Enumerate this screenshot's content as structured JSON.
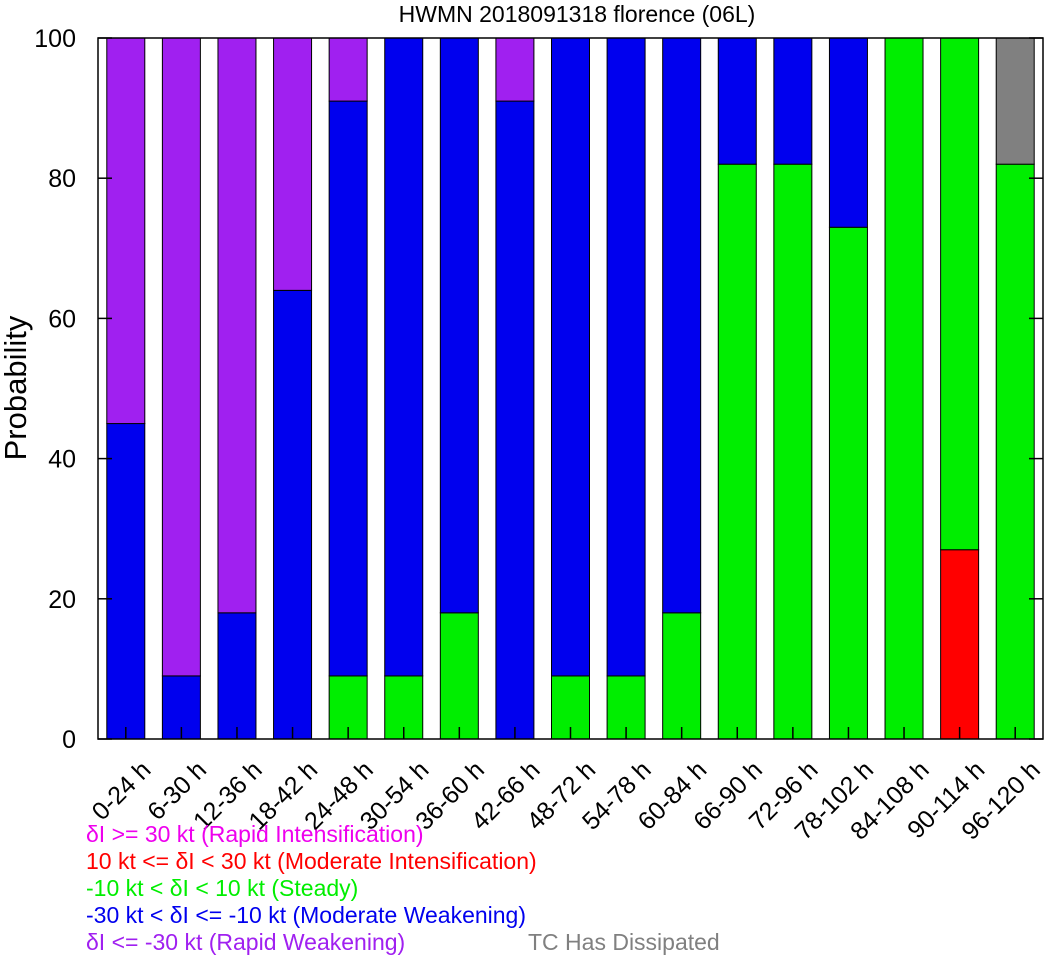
{
  "chart_data": {
    "type": "bar",
    "stacked": true,
    "title": "HWMN 2018091318 florence (06L)",
    "xlabel": "",
    "ylabel": "Probability",
    "ylim": [
      0,
      100
    ],
    "yticks": [
      0,
      20,
      40,
      60,
      80,
      100
    ],
    "grid": false,
    "categories": [
      "0-24 h",
      "6-30 h",
      "12-36 h",
      "18-42 h",
      "24-48 h",
      "30-54 h",
      "36-60 h",
      "42-66 h",
      "48-72 h",
      "54-78 h",
      "60-84 h",
      "66-90 h",
      "72-96 h",
      "78-102 h",
      "84-108 h",
      "90-114 h",
      "96-120 h"
    ],
    "series": [
      {
        "name": "10 kt <= δI < 30 kt (Moderate Intensification)",
        "color": "#ff0000",
        "values": [
          0,
          0,
          0,
          0,
          0,
          0,
          0,
          0,
          0,
          0,
          0,
          0,
          0,
          0,
          0,
          27,
          0
        ]
      },
      {
        "name": "-10 kt < δI < 10 kt (Steady)",
        "color": "#00ee00",
        "values": [
          0,
          0,
          0,
          0,
          9,
          9,
          18,
          0,
          9,
          9,
          18,
          82,
          82,
          73,
          100,
          73,
          82
        ]
      },
      {
        "name": "-30 kt < δI <= -10 kt (Moderate Weakening)",
        "color": "#0000ee",
        "values": [
          45,
          9,
          18,
          64,
          82,
          91,
          82,
          91,
          91,
          91,
          82,
          18,
          18,
          27,
          0,
          0,
          0
        ]
      },
      {
        "name": "δI >= 30 kt (Rapid Intensification)",
        "color": "#ee00ee",
        "values": [
          0,
          0,
          0,
          0,
          0,
          0,
          0,
          0,
          0,
          0,
          0,
          0,
          0,
          0,
          0,
          0,
          0
        ]
      },
      {
        "name": "δI <= -30 kt (Rapid Weakening)",
        "color": "#a020f0",
        "values": [
          55,
          91,
          82,
          36,
          9,
          0,
          0,
          9,
          0,
          0,
          0,
          0,
          0,
          0,
          0,
          0,
          0
        ]
      },
      {
        "name": "TC Has Dissipated",
        "color": "#808080",
        "values": [
          0,
          0,
          0,
          0,
          0,
          0,
          0,
          0,
          0,
          0,
          0,
          0,
          0,
          0,
          0,
          0,
          18
        ]
      }
    ],
    "legend": {
      "placement": "bottom-left",
      "entries": [
        {
          "text": "δI >= 30 kt (Rapid Intensification)",
          "color": "#ee00ee"
        },
        {
          "text": "10 kt <= δI < 30 kt (Moderate Intensification)",
          "color": "#ff0000"
        },
        {
          "text": "-10 kt < δI < 10 kt (Steady)",
          "color": "#00ee00"
        },
        {
          "text": "-30 kt < δI <= -10 kt (Moderate Weakening)",
          "color": "#0000ee"
        },
        {
          "text": "δI <= -30 kt (Rapid Weakening)",
          "color": "#a020f0"
        },
        {
          "text": "TC Has Dissipated",
          "color": "#808080"
        }
      ]
    }
  }
}
